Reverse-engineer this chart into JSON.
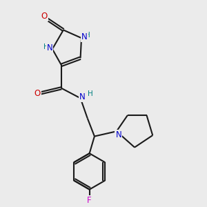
{
  "bg_color": "#ebebeb",
  "atom_colors": {
    "C": "#000000",
    "N": "#0000cc",
    "O": "#cc0000",
    "F": "#cc00cc",
    "H": "#008080"
  },
  "bond_color": "#1a1a1a",
  "bond_width": 1.5,
  "figsize": [
    3.0,
    3.0
  ],
  "dpi": 100
}
